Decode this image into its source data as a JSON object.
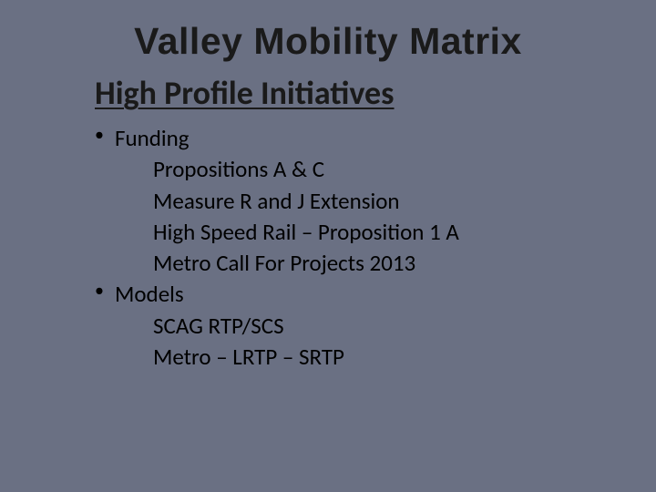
{
  "slide": {
    "title": "Valley Mobility Matrix",
    "subtitle": "High Profile Initiatives",
    "bullets": [
      {
        "label": "Funding",
        "subitems": [
          "Propositions A & C",
          "Measure R and J Extension",
          "High Speed Rail – Proposition 1 A",
          "Metro Call For Projects 2013"
        ]
      },
      {
        "label": "Models",
        "subitems": [
          "SCAG RTP/SCS",
          "Metro – LRTP – SRTP"
        ]
      }
    ],
    "colors": {
      "background": "#6a7083",
      "title_text": "#1a1a1a",
      "body_text": "#000000"
    },
    "fonts": {
      "title_family": "Arial Black",
      "body_family": "Calibri",
      "title_size_pt": 41,
      "subtitle_size_pt": 36,
      "body_size_pt": 25
    }
  }
}
